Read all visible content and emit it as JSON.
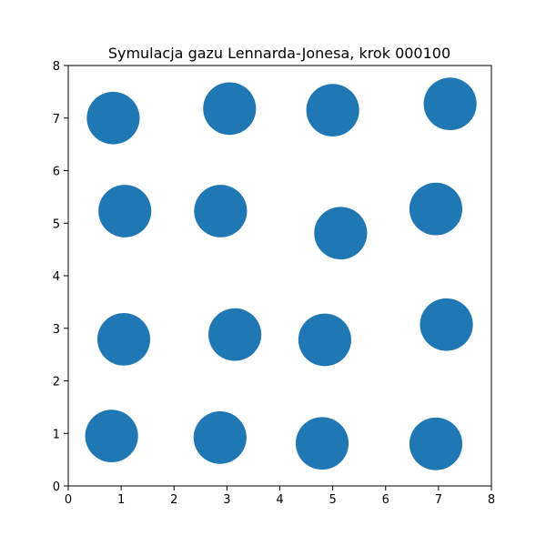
{
  "chart_data": {
    "type": "scatter",
    "title": "Symulacja gazu Lennarda-Jonesa, krok 000100",
    "xlabel": "",
    "ylabel": "",
    "xlim": [
      0,
      8
    ],
    "ylim": [
      0,
      8
    ],
    "xticks": [
      "0",
      "1",
      "2",
      "3",
      "4",
      "5",
      "6",
      "7",
      "8"
    ],
    "yticks": [
      "0",
      "1",
      "2",
      "3",
      "4",
      "5",
      "6",
      "7",
      "8"
    ],
    "grid": false,
    "marker_color": "#1f77b4",
    "particle_radius": 0.5,
    "points": [
      {
        "x": 0.85,
        "y": 7.0
      },
      {
        "x": 3.05,
        "y": 7.18
      },
      {
        "x": 5.0,
        "y": 7.15
      },
      {
        "x": 7.22,
        "y": 7.27
      },
      {
        "x": 1.07,
        "y": 5.23
      },
      {
        "x": 2.88,
        "y": 5.23
      },
      {
        "x": 5.15,
        "y": 4.81
      },
      {
        "x": 6.95,
        "y": 5.27
      },
      {
        "x": 1.05,
        "y": 2.79
      },
      {
        "x": 3.15,
        "y": 2.88
      },
      {
        "x": 4.85,
        "y": 2.78
      },
      {
        "x": 7.15,
        "y": 3.07
      },
      {
        "x": 0.82,
        "y": 0.95
      },
      {
        "x": 2.87,
        "y": 0.92
      },
      {
        "x": 4.8,
        "y": 0.81
      },
      {
        "x": 6.95,
        "y": 0.8
      }
    ]
  }
}
